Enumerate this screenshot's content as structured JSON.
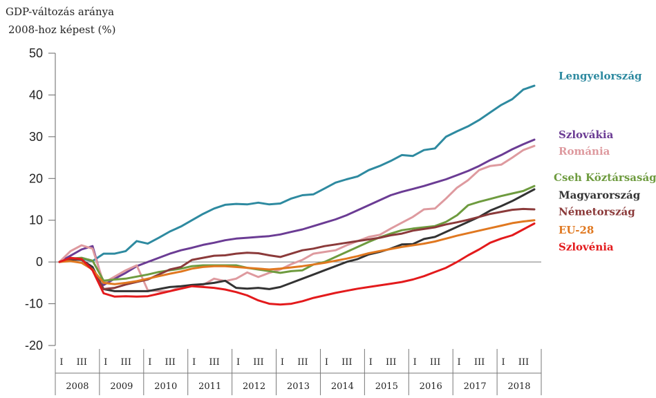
{
  "chart_data": {
    "type": "line",
    "title": "",
    "ylabel": [
      "GDP-változás aránya",
      "2008-hoz képest (%)"
    ],
    "xlabel": "",
    "ylim": [
      -20,
      50
    ],
    "yticks": [
      50,
      40,
      30,
      20,
      10,
      0,
      -10,
      -20
    ],
    "years": [
      "2008",
      "2009",
      "2010",
      "2011",
      "2012",
      "2013",
      "2014",
      "2015",
      "2016",
      "2017",
      "2018"
    ],
    "quarter_labels": [
      "I",
      "III"
    ],
    "x_start": "2008 Q1",
    "series": [
      {
        "name": "Lengyelország",
        "color": "#2E8AA0",
        "values": [
          0,
          0.5,
          0.8,
          0.2,
          2,
          2,
          2.6,
          5,
          4.4,
          5.8,
          7.3,
          8.5,
          10,
          11.5,
          12.8,
          13.7,
          13.9,
          13.8,
          14.2,
          13.8,
          14,
          15.2,
          16,
          16.2,
          17.6,
          19,
          19.8,
          20.5,
          22,
          23,
          24.2,
          25.6,
          25.4,
          26.8,
          27.2,
          30,
          31.3,
          32.5,
          34,
          35.8,
          37.6,
          39,
          41.3,
          42.2
        ]
      },
      {
        "name": "Szlovákia",
        "color": "#6B3C94",
        "values": [
          0,
          1.5,
          3,
          3.8,
          -5.5,
          -4,
          -2.6,
          -1,
          0,
          1,
          2,
          2.8,
          3.4,
          4.1,
          4.6,
          5.2,
          5.6,
          5.8,
          6,
          6.2,
          6.6,
          7.2,
          7.8,
          8.6,
          9.4,
          10.2,
          11.2,
          12.4,
          13.6,
          14.8,
          16,
          16.8,
          17.5,
          18.2,
          19,
          19.8,
          20.8,
          21.8,
          23,
          24.4,
          25.6,
          27,
          28.2,
          29.3
        ]
      },
      {
        "name": "Románia",
        "color": "#DE9A9F",
        "values": [
          0,
          2.6,
          4,
          3.2,
          -5,
          -3.5,
          -2,
          -0.8,
          -6.8,
          -7,
          -7,
          -6,
          -5.5,
          -5.5,
          -4,
          -4.6,
          -4,
          -2.5,
          -3.6,
          -2.6,
          -1.8,
          -0.5,
          0.5,
          2,
          2.4,
          2.8,
          4,
          5,
          6,
          6.5,
          8,
          9.4,
          10.8,
          12.6,
          12.8,
          15.2,
          17.8,
          19.6,
          22,
          23,
          23.3,
          25,
          26.8,
          27.8
        ]
      },
      {
        "name": "Cseh Köztársaság",
        "color": "#6E9B3F",
        "values": [
          0,
          0.8,
          1,
          0.3,
          -4.5,
          -4.2,
          -4,
          -3.5,
          -3,
          -2.4,
          -2,
          -1.6,
          -1,
          -0.8,
          -0.8,
          -0.8,
          -0.8,
          -1.4,
          -1.8,
          -2.2,
          -2.6,
          -2.2,
          -2,
          -0.6,
          0,
          1.2,
          2.4,
          3.6,
          4.8,
          5.9,
          6.8,
          7.6,
          8,
          8.3,
          8.6,
          9.6,
          11.2,
          13.6,
          14.4,
          15.1,
          15.8,
          16.4,
          17,
          18.2
        ]
      },
      {
        "name": "Magyarország",
        "color": "#333333",
        "values": [
          0,
          0.6,
          0.5,
          -1.2,
          -6.5,
          -7,
          -7,
          -7,
          -7,
          -6.5,
          -6,
          -5.8,
          -5.5,
          -5.3,
          -5,
          -4.5,
          -6.2,
          -6.4,
          -6.2,
          -6.5,
          -6,
          -5,
          -4,
          -3,
          -2,
          -1,
          0,
          0.7,
          1.8,
          2.4,
          3.2,
          4.2,
          4.3,
          5.5,
          6,
          7.2,
          8.4,
          9.6,
          10.8,
          12.3,
          13.4,
          14.6,
          16,
          17.4
        ]
      },
      {
        "name": "Németország",
        "color": "#8B3A3A",
        "values": [
          0,
          0.8,
          0.6,
          -1.8,
          -6.5,
          -6.2,
          -5.4,
          -4.8,
          -4.2,
          -3,
          -1.8,
          -1.2,
          0.5,
          1,
          1.5,
          1.6,
          2,
          2.2,
          2.1,
          1.6,
          1.2,
          2,
          2.8,
          3.2,
          3.8,
          4.2,
          4.6,
          5,
          5.4,
          5.8,
          6.4,
          6.8,
          7.5,
          7.9,
          8.3,
          9,
          9.5,
          10.1,
          10.8,
          11.5,
          12,
          12.5,
          12.7,
          12.6
        ]
      },
      {
        "name": "EU-28",
        "color": "#E07820",
        "values": [
          0,
          0.2,
          -0.2,
          -1.8,
          -5,
          -5.3,
          -5,
          -4.6,
          -4,
          -3.4,
          -2.8,
          -2.3,
          -1.6,
          -1.2,
          -1,
          -1,
          -1.2,
          -1.4,
          -1.6,
          -1.8,
          -1.6,
          -1.3,
          -1,
          -0.6,
          -0.2,
          0.3,
          0.8,
          1.4,
          2.1,
          2.6,
          3.1,
          3.6,
          4,
          4.4,
          4.9,
          5.6,
          6.3,
          6.9,
          7.5,
          8.1,
          8.7,
          9.3,
          9.7,
          10
        ]
      },
      {
        "name": "Szlovénia",
        "color": "#E31A1C",
        "values": [
          0,
          1,
          0.7,
          -2,
          -7.5,
          -8.3,
          -8.2,
          -8.3,
          -8.2,
          -7.6,
          -7,
          -6.4,
          -5.8,
          -6,
          -6.2,
          -6.6,
          -7.2,
          -8,
          -9.2,
          -10,
          -10.2,
          -10,
          -9.4,
          -8.6,
          -8,
          -7.4,
          -6.9,
          -6.4,
          -6,
          -5.6,
          -5.2,
          -4.8,
          -4.2,
          -3.4,
          -2.4,
          -1.4,
          0,
          1.6,
          3,
          4.6,
          5.6,
          6.4,
          7.8,
          9.2
        ]
      }
    ]
  }
}
